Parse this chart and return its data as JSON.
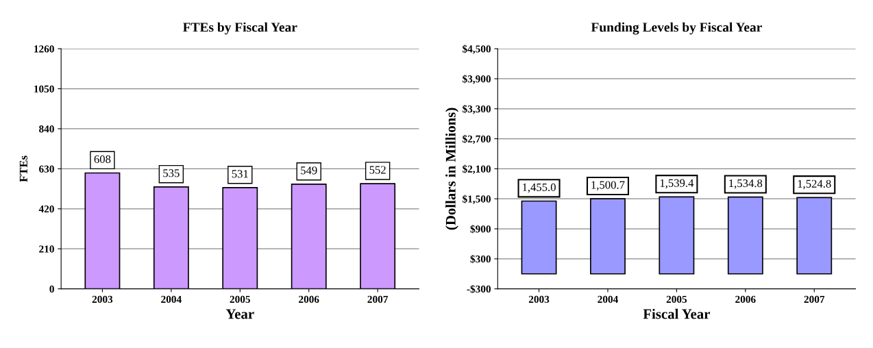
{
  "chart_data": [
    {
      "type": "bar",
      "title": "FTEs by Fiscal Year",
      "xlabel": "Year",
      "ylabel": "FTEs",
      "categories": [
        "2003",
        "2004",
        "2005",
        "2006",
        "2007"
      ],
      "values": [
        608,
        535,
        531,
        549,
        552
      ],
      "color": "#cc99ff",
      "ylim": [
        0,
        1260
      ],
      "yticks": [
        0,
        210,
        420,
        630,
        840,
        1050,
        1260
      ],
      "grid": "y",
      "data_labels": true
    },
    {
      "type": "bar",
      "title": "Funding Levels by Fiscal Year",
      "xlabel": "Fiscal Year",
      "ylabel": "(Dollars in Millions)",
      "categories": [
        "2003",
        "2004",
        "2005",
        "2006",
        "2007"
      ],
      "values": [
        1455.0,
        1500.7,
        1539.4,
        1534.8,
        1524.8
      ],
      "color": "#9999ff",
      "value_labels": [
        "1,455.0",
        "1,500.7",
        "1,539.4",
        "1,534.8",
        "1,524.8"
      ],
      "ylim": [
        -300,
        4500
      ],
      "yticks": [
        {
          "value": -300,
          "label": "-$300"
        },
        {
          "value": 300,
          "label": "$300"
        },
        {
          "value": 900,
          "label": "$900"
        },
        {
          "value": 1500,
          "label": "$1,500"
        },
        {
          "value": 2100,
          "label": "$2,100"
        },
        {
          "value": 2700,
          "label": "$2,700"
        },
        {
          "value": 3300,
          "label": "$3,300"
        },
        {
          "value": 3900,
          "label": "$3,900"
        },
        {
          "value": 4500,
          "label": "$4,500"
        }
      ],
      "grid": "y"
    }
  ]
}
